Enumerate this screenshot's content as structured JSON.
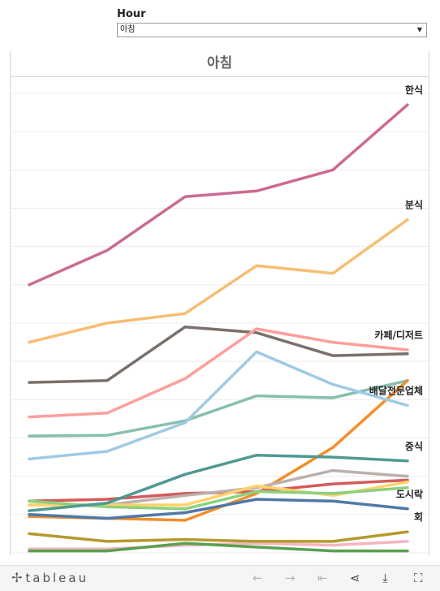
{
  "filter": {
    "label": "Hour",
    "selected": "아침"
  },
  "chart_data": {
    "type": "line",
    "title": "아침",
    "xlabel": "",
    "ylabel": "",
    "ylim": [
      0,
      120
    ],
    "grid": true,
    "x": [
      1,
      2,
      3,
      4,
      5,
      6
    ],
    "series": [
      {
        "name": "한식",
        "label": "한식",
        "color": "#cc6a93",
        "values": [
          70,
          79,
          93,
          94.5,
          100,
          117
        ]
      },
      {
        "name": "분식",
        "label": "분식",
        "color": "#f8bd72",
        "values": [
          55,
          60,
          62.5,
          75,
          73,
          87
        ]
      },
      {
        "name": "카페/디저트",
        "label": "카페/디저트",
        "color": "#ff9e9a",
        "values": [
          35.5,
          36.5,
          45.5,
          58.5,
          55,
          53
        ]
      },
      {
        "name": "배달전문업체",
        "label": "배달전문업체",
        "color": "#9fcae5",
        "values": [
          24.5,
          26.5,
          34,
          52.5,
          44,
          38.5
        ]
      },
      {
        "name": "",
        "label": "",
        "color": "#7a706b",
        "values": [
          44.5,
          45,
          59,
          57.5,
          51.5,
          52
        ]
      },
      {
        "name": "",
        "label": "",
        "color": "#87bfae",
        "values": [
          30.5,
          30.7,
          34.5,
          41,
          40.5,
          45
        ]
      },
      {
        "name": "중식",
        "label": "중식",
        "color": "#4f9a92",
        "values": [
          11,
          13,
          20.5,
          25.5,
          25,
          24
        ]
      },
      {
        "name": "",
        "label": "",
        "color": "#f28e2b",
        "values": [
          9.5,
          9,
          8.5,
          15.5,
          27.5,
          45
        ]
      },
      {
        "name": "",
        "label": "",
        "color": "#d45a5a",
        "values": [
          13.5,
          14,
          15.5,
          16,
          18,
          19
        ]
      },
      {
        "name": "",
        "label": "",
        "color": "#bab0ac",
        "values": [
          12.5,
          12.5,
          15,
          17,
          21.5,
          20
        ]
      },
      {
        "name": "",
        "label": "",
        "color": "#ffd36b",
        "values": [
          12.5,
          12.5,
          12.5,
          17.5,
          15,
          18.5
        ]
      },
      {
        "name": "",
        "label": "",
        "color": "#8cd17d",
        "values": [
          13.5,
          12,
          11.5,
          16,
          15.5,
          17
        ]
      },
      {
        "name": "도시락",
        "label": "도시락",
        "color": "#4e79a7",
        "values": [
          10,
          9,
          10.5,
          14,
          13.5,
          11.5
        ]
      },
      {
        "name": "",
        "label": "",
        "color": "#f5b6c0",
        "values": [
          1,
          1,
          2,
          2.5,
          2,
          3
        ]
      },
      {
        "name": "회",
        "label": "회",
        "color": "#b49a2e",
        "values": [
          5,
          3,
          3.5,
          3,
          3,
          5.5
        ]
      },
      {
        "name": "",
        "label": "",
        "color": "#59a14f",
        "values": [
          0.5,
          0.5,
          2.5,
          1.5,
          0.5,
          0.5
        ]
      }
    ]
  },
  "toolbar": {
    "logo_text": "tableau",
    "logo_mark": "✢",
    "undo": "←",
    "redo": "→",
    "revert": "⇤",
    "share": "⋖",
    "download": "⤓",
    "fullscreen": "⛶"
  }
}
